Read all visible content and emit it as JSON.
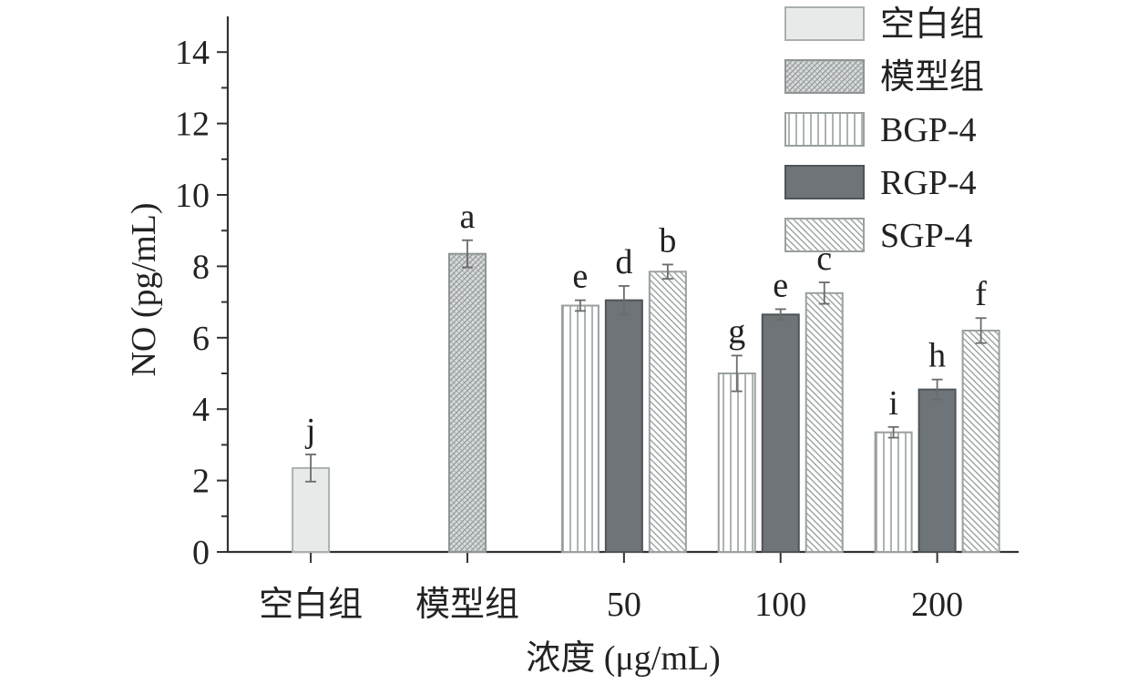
{
  "chart_data": {
    "type": "bar",
    "ylabel": "NO (pg/mL)",
    "xlabel": "浓度 (μg/mL)",
    "ylim": [
      0,
      15
    ],
    "yticks": [
      0,
      2,
      4,
      6,
      8,
      10,
      12,
      14
    ],
    "categories": [
      "空白组",
      "模型组",
      "50",
      "100",
      "200"
    ],
    "legend_position": "top-right",
    "series": [
      {
        "name": "空白组",
        "pattern": "solid-light",
        "color": "#e8eaea",
        "stroke": "#aab0b0",
        "values": [
          2.35,
          null,
          null,
          null,
          null
        ],
        "errors": [
          0.38,
          null,
          null,
          null,
          null
        ],
        "labels": [
          "j",
          null,
          null,
          null,
          null
        ]
      },
      {
        "name": "模型组",
        "pattern": "crosshatch",
        "color": "#c9cccc",
        "stroke": "#8f9494",
        "values": [
          null,
          8.35,
          null,
          null,
          null
        ],
        "errors": [
          null,
          0.38,
          null,
          null,
          null
        ],
        "labels": [
          null,
          "a",
          null,
          null,
          null
        ]
      },
      {
        "name": "BGP-4",
        "pattern": "vertical-lines",
        "color": "#ffffff",
        "stroke": "#9aa0a0",
        "values": [
          null,
          null,
          6.9,
          5.0,
          3.35
        ],
        "errors": [
          null,
          null,
          0.15,
          0.5,
          0.15
        ],
        "labels": [
          null,
          null,
          "e",
          "g",
          "i"
        ]
      },
      {
        "name": "RGP-4",
        "pattern": "solid-dark",
        "color": "#6e7478",
        "stroke": "#4e5458",
        "values": [
          null,
          null,
          7.05,
          6.65,
          4.55
        ],
        "errors": [
          null,
          null,
          0.4,
          0.15,
          0.28
        ],
        "labels": [
          null,
          null,
          "d",
          "e",
          "h"
        ]
      },
      {
        "name": "SGP-4",
        "pattern": "diagonal-lines",
        "color": "#ffffff",
        "stroke": "#9aa0a0",
        "values": [
          null,
          null,
          7.85,
          7.25,
          6.2
        ],
        "errors": [
          null,
          null,
          0.2,
          0.3,
          0.35
        ],
        "labels": [
          null,
          null,
          "b",
          "c",
          "f"
        ]
      }
    ]
  }
}
